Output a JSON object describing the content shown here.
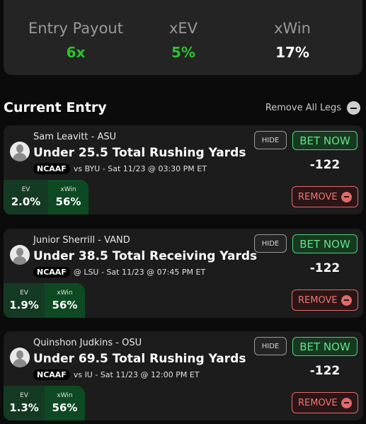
{
  "summary": {
    "entry_payout_label": "Entry Payout",
    "entry_payout_value": "6x",
    "xev_label": "xEV",
    "xev_value": "5%",
    "xwin_label": "xWin",
    "xwin_value": "17%"
  },
  "section": {
    "title": "Current Entry",
    "remove_all_label": "Remove All Legs"
  },
  "buttons": {
    "hide": "HIDE",
    "bet_now": "BET NOW",
    "remove": "REMOVE"
  },
  "labels": {
    "ev": "EV",
    "xwin": "xWin"
  },
  "legs": [
    {
      "player": "Sam Leavitt - ASU",
      "prop": "Under 25.5 Total Rushing Yards",
      "league": "NCAAF",
      "game": "vs BYU - Sat 11/23 @ 03:30 PM ET",
      "odds": "-122",
      "ev": "2.0%",
      "xwin": "56%"
    },
    {
      "player": "Junior Sherrill - VAND",
      "prop": "Under 38.5 Total Receiving Yards",
      "league": "NCAAF",
      "game": "@ LSU - Sat 11/23 @ 07:45 PM ET",
      "odds": "-122",
      "ev": "1.9%",
      "xwin": "56%"
    },
    {
      "player": "Quinshon Judkins - OSU",
      "prop": "Under 69.5 Total Rushing Yards",
      "league": "NCAAF",
      "game": "vs IU - Sat 11/23 @ 12:00 PM ET",
      "odds": "-122",
      "ev": "1.3%",
      "xwin": "56%"
    }
  ],
  "colors": {
    "green_value": "#2ec12e",
    "bet_now": "#48d37a",
    "remove": "#e06a6a"
  },
  "icons": {
    "remove_all": "minus-circle-icon",
    "remove": "minus-circle-icon",
    "avatar": "user-avatar-icon"
  }
}
